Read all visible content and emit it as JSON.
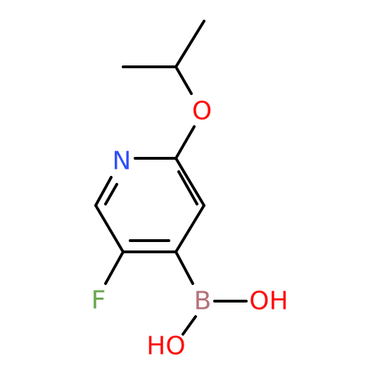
{
  "atoms": [
    {
      "label": "O"
    },
    {
      "label": "N"
    },
    {
      "label": "F"
    },
    {
      "label": "B"
    },
    {
      "label": "OH"
    },
    {
      "label": "HO"
    }
  ]
}
